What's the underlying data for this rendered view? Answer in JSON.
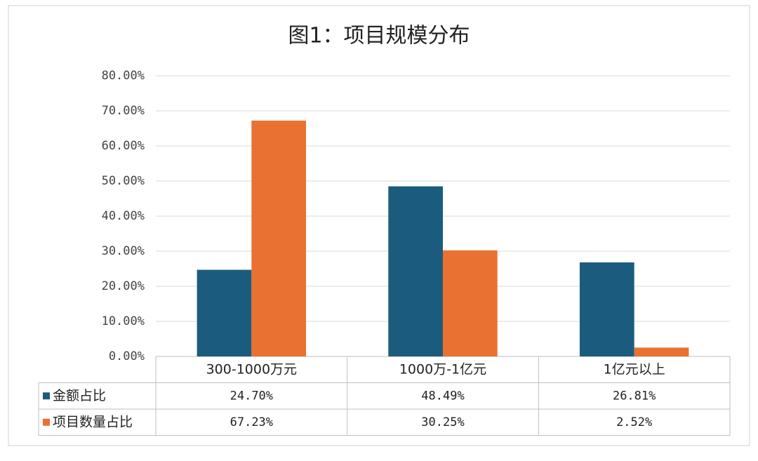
{
  "chart_data": {
    "type": "bar",
    "title": "图1：项目规模分布",
    "categories": [
      "300-1000万元",
      "1000万-1亿元",
      "1亿元以上"
    ],
    "series": [
      {
        "name": "金额占比",
        "color": "#1b5c7e",
        "values": [
          24.7,
          48.49,
          26.81
        ],
        "value_labels": [
          "24.70%",
          "48.49%",
          "26.81%"
        ]
      },
      {
        "name": "项目数量占比",
        "color": "#e97132",
        "values": [
          67.23,
          30.25,
          2.52
        ],
        "value_labels": [
          "67.23%",
          "30.25%",
          "2.52%"
        ]
      }
    ],
    "ylim": [
      0,
      80
    ],
    "yticks": [
      {
        "value": 0,
        "label": "0.00%"
      },
      {
        "value": 10,
        "label": "10.00%"
      },
      {
        "value": 20,
        "label": "20.00%"
      },
      {
        "value": 30,
        "label": "30.00%"
      },
      {
        "value": 40,
        "label": "40.00%"
      },
      {
        "value": 50,
        "label": "50.00%"
      },
      {
        "value": 60,
        "label": "60.00%"
      },
      {
        "value": 70,
        "label": "70.00%"
      },
      {
        "value": 80,
        "label": "80.00%"
      }
    ],
    "grid": true
  }
}
